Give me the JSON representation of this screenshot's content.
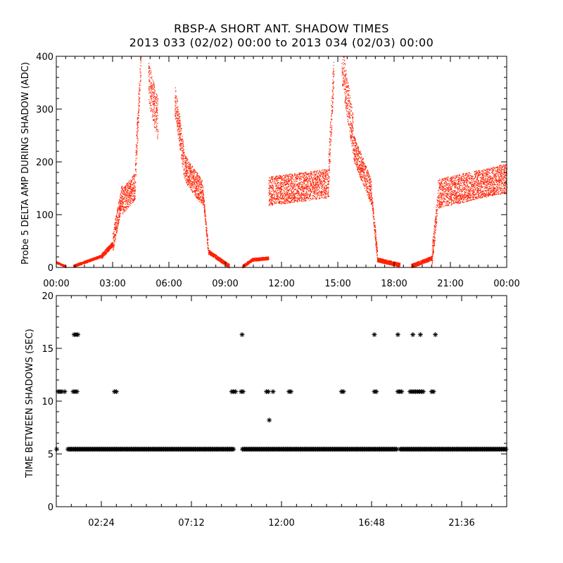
{
  "title": "RBSP-A SHORT ANT. SHADOW TIMES",
  "subtitle": "2013 033 (02/02) 00:00 to 2013 034 (02/03) 00:00",
  "colors": {
    "points": "#ff2000",
    "marks": "#000000",
    "axes": "#000000"
  },
  "chart_data": [
    {
      "type": "scatter",
      "ylabel": "Probe 5 DELTA AMP DURING SHADOW (ADC)",
      "xlim": [
        0,
        24
      ],
      "ylim": [
        0,
        400
      ],
      "xticks": [
        "00:00",
        "03:00",
        "06:00",
        "09:00",
        "12:00",
        "15:00",
        "18:00",
        "21:00",
        "00:00"
      ],
      "yticks": [
        "0",
        "100",
        "200",
        "300",
        "400"
      ],
      "series": [
        {
          "color": "#ff2000",
          "segments": [
            {
              "x0": 0.0,
              "x1": 0.5,
              "y0": 10,
              "y1": 2,
              "spread": 4
            },
            {
              "x0": 0.9,
              "x1": 2.4,
              "y0": 3,
              "y1": 22,
              "spread": 5
            },
            {
              "x0": 2.4,
              "x1": 3.0,
              "y0": 22,
              "y1": 45,
              "spread": 10
            },
            {
              "x0": 3.0,
              "x1": 3.5,
              "y0": 50,
              "y1": 140,
              "spread": 40
            },
            {
              "x0": 3.5,
              "x1": 4.2,
              "y0": 125,
              "y1": 155,
              "spread": 50
            },
            {
              "x0": 4.2,
              "x1": 4.5,
              "y0": 180,
              "y1": 400,
              "spread": 60
            },
            {
              "x0": 4.9,
              "x1": 5.4,
              "y0": 350,
              "y1": 280,
              "spread": 80
            },
            {
              "x0": 6.3,
              "x1": 6.8,
              "y0": 320,
              "y1": 200,
              "spread": 60
            },
            {
              "x0": 6.8,
              "x1": 7.8,
              "y0": 190,
              "y1": 140,
              "spread": 50
            },
            {
              "x0": 7.8,
              "x1": 8.1,
              "y0": 140,
              "y1": 30,
              "spread": 20
            },
            {
              "x0": 8.1,
              "x1": 9.2,
              "y0": 30,
              "y1": 3,
              "spread": 8
            },
            {
              "x0": 9.9,
              "x1": 10.4,
              "y0": 2,
              "y1": 14,
              "spread": 6
            },
            {
              "x0": 10.4,
              "x1": 11.3,
              "y0": 15,
              "y1": 18,
              "spread": 6
            },
            {
              "x0": 11.3,
              "x1": 14.5,
              "y0": 145,
              "y1": 160,
              "spread": 55
            },
            {
              "x0": 14.5,
              "x1": 14.8,
              "y0": 180,
              "y1": 400,
              "spread": 70
            },
            {
              "x0": 15.2,
              "x1": 15.8,
              "y0": 390,
              "y1": 250,
              "spread": 80
            },
            {
              "x0": 15.8,
              "x1": 16.8,
              "y0": 230,
              "y1": 140,
              "spread": 50
            },
            {
              "x0": 16.8,
              "x1": 17.1,
              "y0": 130,
              "y1": 20,
              "spread": 25
            },
            {
              "x0": 17.1,
              "x1": 18.3,
              "y0": 15,
              "y1": 5,
              "spread": 8
            },
            {
              "x0": 18.9,
              "x1": 20.0,
              "y0": 3,
              "y1": 18,
              "spread": 8
            },
            {
              "x0": 20.0,
              "x1": 20.3,
              "y0": 20,
              "y1": 120,
              "spread": 40
            },
            {
              "x0": 20.3,
              "x1": 24.0,
              "y0": 140,
              "y1": 170,
              "spread": 55
            }
          ]
        }
      ]
    },
    {
      "type": "scatter",
      "ylabel": "TIME BETWEEN SHADOWS (SEC)",
      "xlim": [
        0,
        24
      ],
      "ylim": [
        0,
        20
      ],
      "xticks": [
        "02:24",
        "07:12",
        "12:00",
        "16:48",
        "21:36"
      ],
      "xtick_values": [
        2.4,
        7.2,
        12.0,
        16.8,
        21.6
      ],
      "yticks": [
        "0",
        "5",
        "10",
        "15",
        "20"
      ],
      "baseline": {
        "y": 5.45,
        "gaps": [
          [
            0.05,
            0.6
          ],
          [
            9.45,
            9.9
          ],
          [
            18.15,
            18.3
          ]
        ]
      },
      "points": [
        [
          0.1,
          10.9
        ],
        [
          0.2,
          10.9
        ],
        [
          0.3,
          10.9
        ],
        [
          0.45,
          10.9
        ],
        [
          0.9,
          10.9
        ],
        [
          1.0,
          10.9
        ],
        [
          1.1,
          10.9
        ],
        [
          0.95,
          16.3
        ],
        [
          1.05,
          16.3
        ],
        [
          1.15,
          16.3
        ],
        [
          3.1,
          10.9
        ],
        [
          3.2,
          10.9
        ],
        [
          9.35,
          10.9
        ],
        [
          9.45,
          10.9
        ],
        [
          9.55,
          10.9
        ],
        [
          9.9,
          16.3
        ],
        [
          9.85,
          10.9
        ],
        [
          9.95,
          10.9
        ],
        [
          11.2,
          10.9
        ],
        [
          11.3,
          10.9
        ],
        [
          11.55,
          10.9
        ],
        [
          11.35,
          8.2
        ],
        [
          12.4,
          10.9
        ],
        [
          12.5,
          10.9
        ],
        [
          15.2,
          10.9
        ],
        [
          15.3,
          10.9
        ],
        [
          16.95,
          16.3
        ],
        [
          16.95,
          10.9
        ],
        [
          17.05,
          10.9
        ],
        [
          18.2,
          16.3
        ],
        [
          18.2,
          10.9
        ],
        [
          18.3,
          10.9
        ],
        [
          18.4,
          10.9
        ],
        [
          18.85,
          10.9
        ],
        [
          18.95,
          10.9
        ],
        [
          19.05,
          10.9
        ],
        [
          19.15,
          10.9
        ],
        [
          19.25,
          10.9
        ],
        [
          19.35,
          10.9
        ],
        [
          19.45,
          10.9
        ],
        [
          19.55,
          10.9
        ],
        [
          19.0,
          16.3
        ],
        [
          19.4,
          16.3
        ],
        [
          20.0,
          10.9
        ],
        [
          20.1,
          10.9
        ],
        [
          20.2,
          16.3
        ]
      ]
    }
  ]
}
